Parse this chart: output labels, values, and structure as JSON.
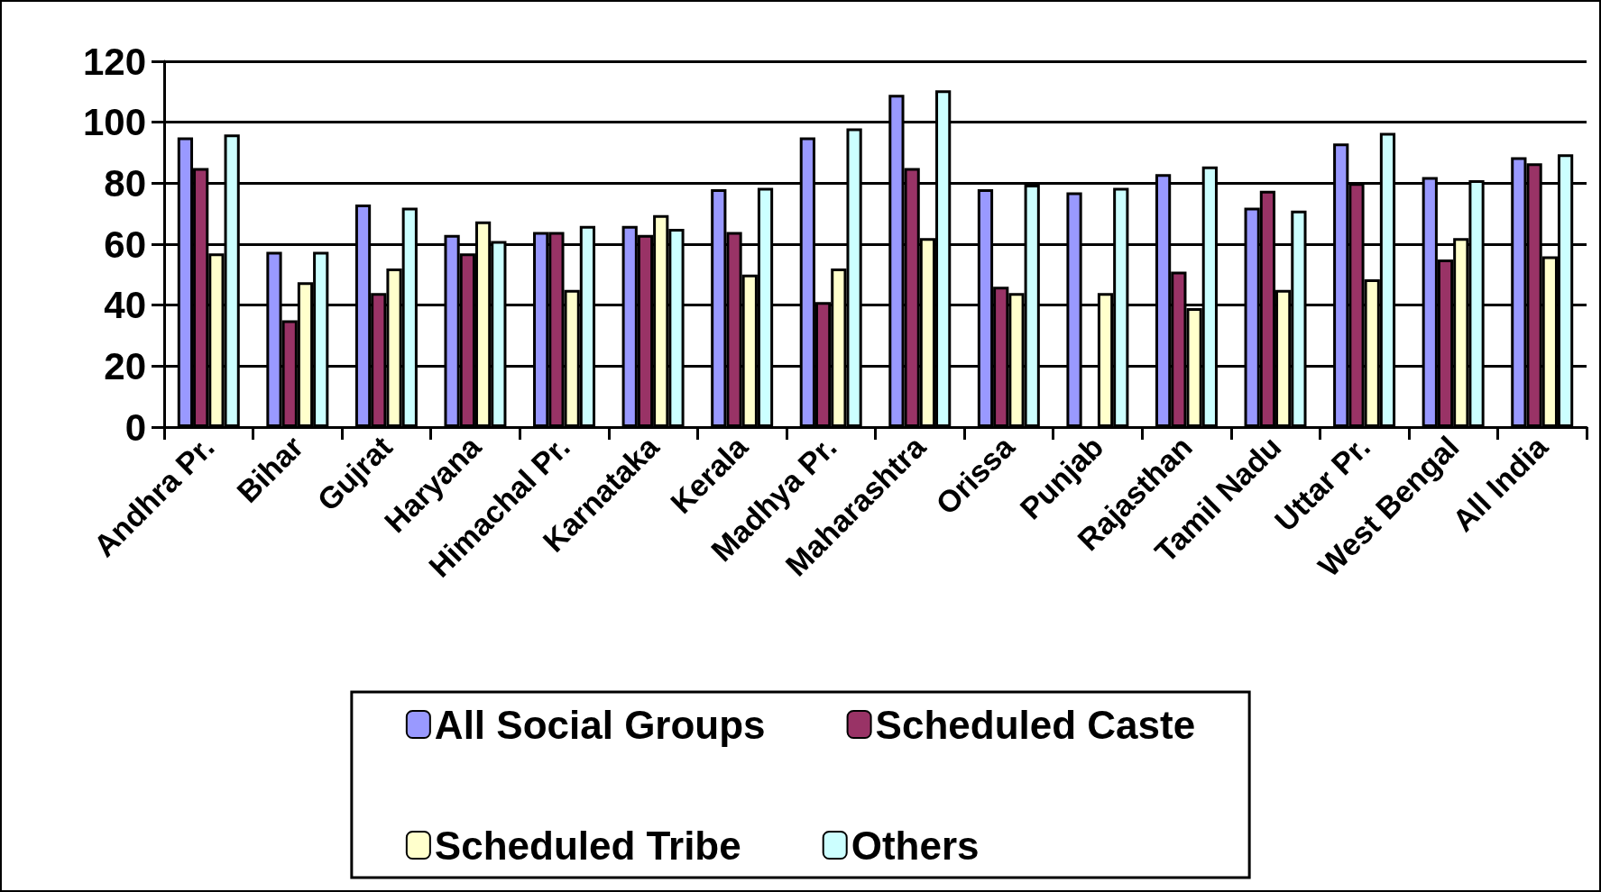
{
  "chart_data": {
    "type": "bar",
    "categories": [
      "Andhra Pr.",
      "Bihar",
      "Gujrat",
      "Haryana",
      "Himachal Pr.",
      "Karnataka",
      "Kerala",
      "Madhya Pr.",
      "Maharashtra",
      "Orissa",
      "Punjab",
      "Rajasthan",
      "Tamil Nadu",
      "Uttar Pr.",
      "West Bengal",
      "All India"
    ],
    "series": [
      {
        "name": "All Social Groups",
        "color": "#9999ff",
        "values": [
          95,
          57.5,
          73,
          63,
          64,
          66,
          78,
          95,
          109,
          78,
          77,
          83,
          72,
          93,
          82,
          88.5
        ]
      },
      {
        "name": "Scheduled Caste",
        "color": "#993366",
        "values": [
          85,
          35,
          44,
          57,
          64,
          63,
          64,
          41,
          85,
          46,
          null,
          51,
          77.5,
          80,
          55,
          86.5
        ]
      },
      {
        "name": "Scheduled Tribe",
        "color": "#ffffcc",
        "values": [
          57,
          47.5,
          52,
          67.5,
          45,
          69.5,
          50,
          52,
          62,
          44,
          44,
          39,
          45,
          48.5,
          62,
          56
        ]
      },
      {
        "name": "Others",
        "color": "#ccffff",
        "values": [
          96,
          57.5,
          72,
          61,
          66,
          65,
          78.5,
          98,
          110.5,
          79.5,
          78.5,
          85.5,
          71,
          96.5,
          81,
          89.5
        ]
      }
    ],
    "ylim": [
      0,
      120
    ],
    "yticks": [
      0,
      20,
      40,
      60,
      80,
      100,
      120
    ],
    "grid": "y",
    "legend": "bottom"
  }
}
